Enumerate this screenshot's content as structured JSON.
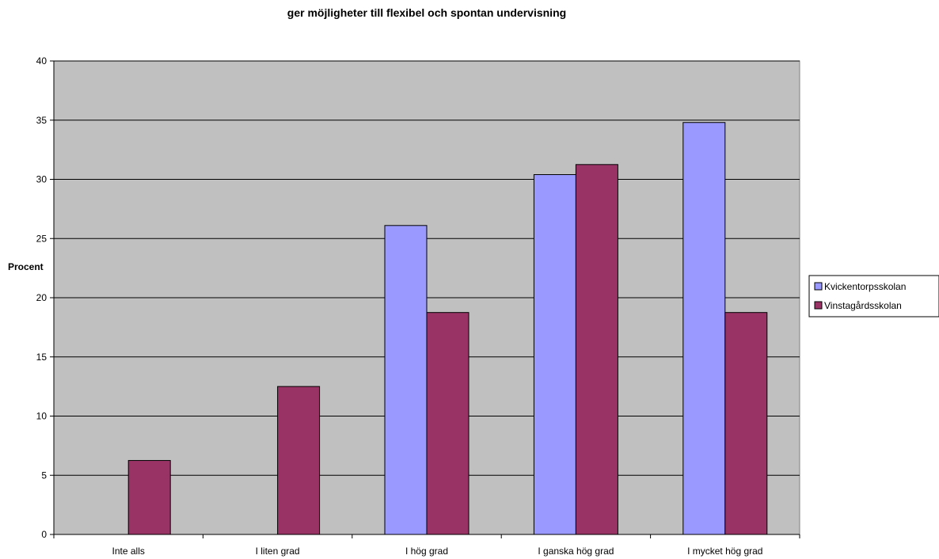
{
  "chart_data": {
    "type": "bar",
    "title": "ger möjligheter till flexibel och spontan undervisning",
    "xlabel": "",
    "ylabel": "Procent",
    "ylim": [
      0,
      40
    ],
    "yticks": [
      0,
      5,
      10,
      15,
      20,
      25,
      30,
      35,
      40
    ],
    "categories": [
      "Inte alls",
      "I liten grad",
      "I hög grad",
      "I ganska hög grad",
      "I mycket hög grad"
    ],
    "series": [
      {
        "name": "Kvickentorpsskolan",
        "color": "#9999ff",
        "values": [
          0,
          0,
          26.1,
          30.4,
          34.8
        ]
      },
      {
        "name": "Vinstagårdsskolan",
        "color": "#993366",
        "values": [
          6.25,
          12.5,
          18.75,
          31.25,
          18.75
        ]
      }
    ],
    "grid": true,
    "plot_background": "#c0c0c0",
    "legend_position": "right"
  }
}
